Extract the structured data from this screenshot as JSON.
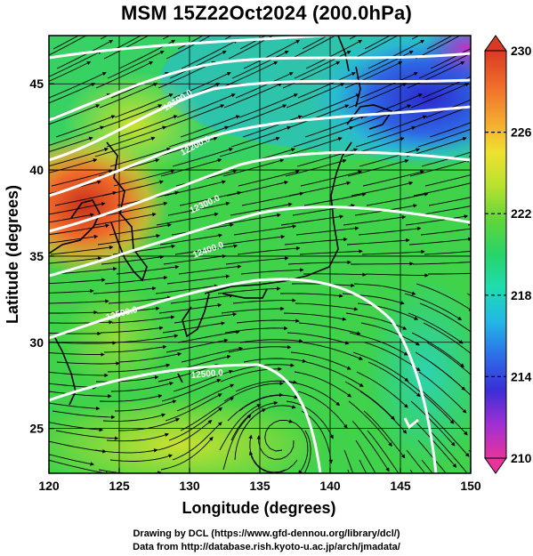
{
  "title": "MSM 15Z22Oct2024 (200.0hPa)",
  "map": {
    "lon_range": [
      120,
      150
    ],
    "lat_range": [
      22.4,
      47.8
    ],
    "x_ticks": [
      120,
      125,
      130,
      135,
      140,
      145,
      150
    ],
    "y_ticks": [
      25,
      30,
      35,
      40,
      45
    ],
    "xlabel": "Longitude (degrees)",
    "ylabel": "Latitude  (degrees)",
    "grid": true,
    "color_field": "temperature shading, warm (red) NW of Korea, cold (blue/purple) NE near Sakhalin, green/yellow elsewhere",
    "flow": "westerly streamlines curving NE in north, anticyclonic swirl south of Japan"
  },
  "contours": {
    "color": "#ffffff",
    "labels": [
      "12000.0",
      "12100.0",
      "12200.0",
      "12300.0",
      "12400.0",
      "12500.0"
    ]
  },
  "colorbar": {
    "min": 210,
    "max": 230,
    "ticks": [
      "230",
      "226",
      "222",
      "218",
      "214",
      "210"
    ],
    "tick_values": [
      230,
      226,
      222,
      218,
      214,
      210
    ],
    "colors": [
      "#e7349c",
      "#a12fd3",
      "#3a2fd6",
      "#2d6de8",
      "#22b6e6",
      "#1fdcb0",
      "#27d46a",
      "#5fd53a",
      "#b7e12f",
      "#efe12f",
      "#f4a430",
      "#ef6a2a",
      "#d93a23"
    ]
  },
  "credits": {
    "line1": "Drawing by DCL (https://www.gfd-dennou.org/library/dcl/)",
    "line2": "Data from http://database.rish.kyoto-u.ac.jp/arch/jmadata/"
  }
}
